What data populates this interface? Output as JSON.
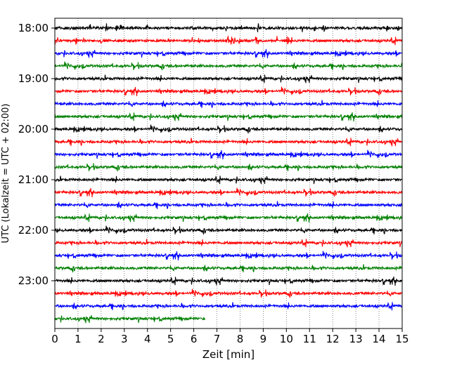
{
  "chart_data": {
    "type": "line",
    "xlabel": "Zeit  [min]",
    "ylabel": "UTC (Lokalzeit = UTC + 02:00)",
    "xlim": [
      0,
      15
    ],
    "x_ticks": [
      "0",
      "1",
      "2",
      "3",
      "4",
      "5",
      "6",
      "7",
      "8",
      "9",
      "10",
      "11",
      "12",
      "13",
      "14",
      "15"
    ],
    "y_ticks": [
      "18:00",
      "19:00",
      "20:00",
      "21:00",
      "22:00",
      "23:00"
    ],
    "grid": "vertical dotted lines at each minute",
    "trace_colors": [
      "#000000",
      "#ff0000",
      "#0000ff",
      "#008000"
    ],
    "trace_interval_minutes": 15,
    "start_utc": "18:00",
    "traces": [
      {
        "start": "18:00",
        "color": "#000000",
        "duration_min": 15
      },
      {
        "start": "18:15",
        "color": "#ff0000",
        "duration_min": 15
      },
      {
        "start": "18:30",
        "color": "#0000ff",
        "duration_min": 15
      },
      {
        "start": "18:45",
        "color": "#008000",
        "duration_min": 15
      },
      {
        "start": "19:00",
        "color": "#000000",
        "duration_min": 15
      },
      {
        "start": "19:15",
        "color": "#ff0000",
        "duration_min": 15
      },
      {
        "start": "19:30",
        "color": "#0000ff",
        "duration_min": 15
      },
      {
        "start": "19:45",
        "color": "#008000",
        "duration_min": 15
      },
      {
        "start": "20:00",
        "color": "#000000",
        "duration_min": 15
      },
      {
        "start": "20:15",
        "color": "#ff0000",
        "duration_min": 15
      },
      {
        "start": "20:30",
        "color": "#0000ff",
        "duration_min": 15
      },
      {
        "start": "20:45",
        "color": "#008000",
        "duration_min": 15
      },
      {
        "start": "21:00",
        "color": "#000000",
        "duration_min": 15
      },
      {
        "start": "21:15",
        "color": "#ff0000",
        "duration_min": 15
      },
      {
        "start": "21:30",
        "color": "#0000ff",
        "duration_min": 15
      },
      {
        "start": "21:45",
        "color": "#008000",
        "duration_min": 15
      },
      {
        "start": "22:00",
        "color": "#000000",
        "duration_min": 15
      },
      {
        "start": "22:15",
        "color": "#ff0000",
        "duration_min": 15
      },
      {
        "start": "22:30",
        "color": "#0000ff",
        "duration_min": 15
      },
      {
        "start": "22:45",
        "color": "#008000",
        "duration_min": 15
      },
      {
        "start": "23:00",
        "color": "#000000",
        "duration_min": 15
      },
      {
        "start": "23:15",
        "color": "#ff0000",
        "duration_min": 15
      },
      {
        "start": "23:30",
        "color": "#0000ff",
        "duration_min": 15
      },
      {
        "start": "23:45",
        "color": "#008000",
        "duration_min": 6.5
      }
    ]
  }
}
